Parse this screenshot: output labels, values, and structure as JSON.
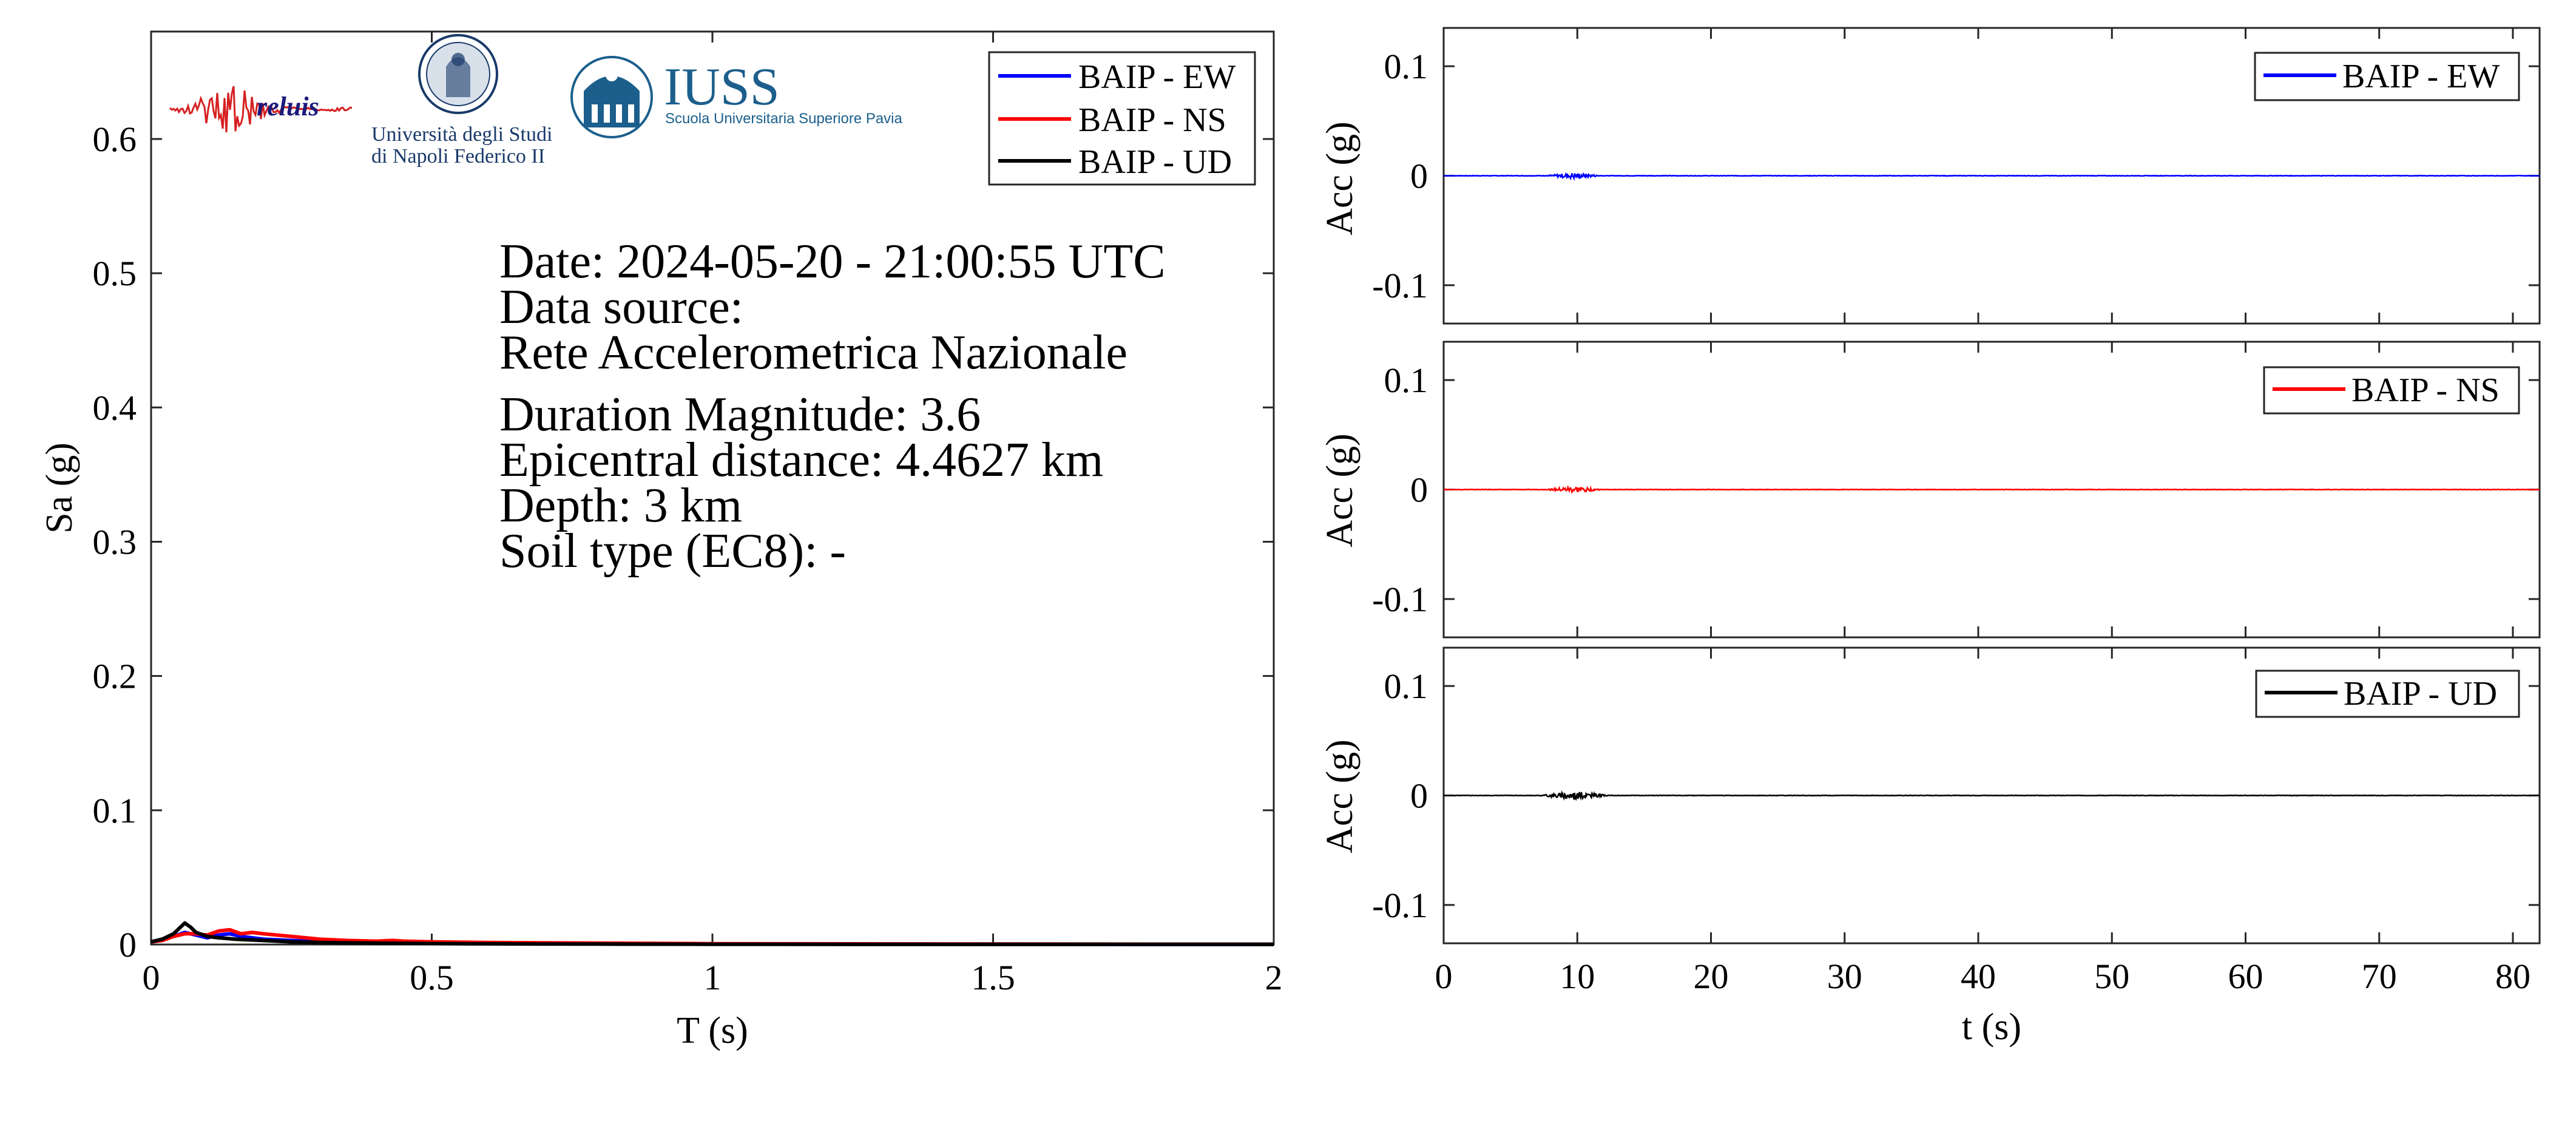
{
  "logos": {
    "reluis": "reluis",
    "napoli_line1": "Università degli Studi",
    "napoli_line2": "di Napoli Federico II",
    "iuss_title": "IUSS",
    "iuss_subtitle": "Scuola Universitaria Superiore Pavia"
  },
  "info": {
    "date": "Date: 2024-05-20 - 21:00:55 UTC",
    "source_label": "Data source:",
    "source": "Rete Accelerometrica Nazionale",
    "magnitude": "Duration Magnitude: 3.6",
    "distance": "Epicentral distance: 4.4627 km",
    "depth": "Depth: 3 km",
    "soil": "Soil type (EC8): -"
  },
  "colors": {
    "ew": "#0000ff",
    "ns": "#ff0000",
    "ud": "#000000"
  },
  "chart_data": [
    {
      "type": "line",
      "xlabel": "T (s)",
      "ylabel": "Sa (g)",
      "xlim": [
        0,
        2
      ],
      "ylim": [
        0,
        0.68
      ],
      "xticks": [
        0,
        0.5,
        1,
        1.5,
        2
      ],
      "xtick_labels": [
        "0",
        "0.5",
        "1",
        "1.5",
        "2"
      ],
      "yticks": [
        0,
        0.1,
        0.2,
        0.3,
        0.4,
        0.5,
        0.6
      ],
      "ytick_labels": [
        "0",
        "0.1",
        "0.2",
        "0.3",
        "0.4",
        "0.5",
        "0.6"
      ],
      "legend_position": "top-right",
      "series": [
        {
          "name": "BAIP - EW",
          "color": "#0000ff",
          "x": [
            0,
            0.02,
            0.04,
            0.06,
            0.08,
            0.1,
            0.12,
            0.14,
            0.16,
            0.2,
            0.25,
            0.3,
            0.35,
            0.4,
            0.45,
            0.5,
            0.6,
            0.8,
            1.0,
            1.5,
            2.0
          ],
          "y": [
            0.002,
            0.004,
            0.006,
            0.009,
            0.007,
            0.005,
            0.007,
            0.008,
            0.006,
            0.004,
            0.003,
            0.002,
            0.0015,
            0.0015,
            0.0012,
            0.001,
            0.0008,
            0.0005,
            0.0003,
            0.0002,
            0.0001
          ]
        },
        {
          "name": "BAIP - NS",
          "color": "#ff0000",
          "x": [
            0,
            0.02,
            0.04,
            0.06,
            0.08,
            0.1,
            0.12,
            0.14,
            0.16,
            0.18,
            0.2,
            0.25,
            0.3,
            0.35,
            0.4,
            0.43,
            0.45,
            0.5,
            0.6,
            0.7,
            0.8,
            1.0,
            1.5,
            2.0
          ],
          "y": [
            0.002,
            0.003,
            0.006,
            0.008,
            0.008,
            0.007,
            0.01,
            0.011,
            0.008,
            0.009,
            0.008,
            0.006,
            0.004,
            0.003,
            0.0025,
            0.003,
            0.0025,
            0.002,
            0.0015,
            0.0012,
            0.001,
            0.0006,
            0.0003,
            0.0002
          ]
        },
        {
          "name": "BAIP - UD",
          "color": "#000000",
          "x": [
            0,
            0.02,
            0.04,
            0.05,
            0.06,
            0.07,
            0.08,
            0.1,
            0.12,
            0.15,
            0.2,
            0.25,
            0.3,
            0.4,
            0.5,
            0.6,
            0.8,
            1.0,
            1.5,
            2.0
          ],
          "y": [
            0.002,
            0.004,
            0.008,
            0.012,
            0.016,
            0.013,
            0.009,
            0.006,
            0.005,
            0.004,
            0.003,
            0.002,
            0.0015,
            0.001,
            0.0007,
            0.0005,
            0.0003,
            0.0002,
            0.0001,
            0.0001
          ]
        }
      ]
    },
    {
      "type": "line",
      "xlabel": "",
      "ylabel": "Acc (g)",
      "xlim": [
        0,
        82
      ],
      "ylim": [
        -0.135,
        0.135
      ],
      "yticks": [
        0.1,
        0,
        -0.1
      ],
      "ytick_labels": [
        "0.1",
        "0",
        "-0.1"
      ],
      "legend_position": "top-right",
      "series": [
        {
          "name": "BAIP - EW",
          "color": "#0000ff",
          "burst_window_s": [
            7.5,
            12
          ],
          "peak_abs_g": 0.003
        }
      ]
    },
    {
      "type": "line",
      "xlabel": "",
      "ylabel": "Acc (g)",
      "xlim": [
        0,
        82
      ],
      "ylim": [
        -0.135,
        0.135
      ],
      "yticks": [
        0.1,
        0,
        -0.1
      ],
      "ytick_labels": [
        "0.1",
        "0",
        "-0.1"
      ],
      "legend_position": "top-right",
      "series": [
        {
          "name": "BAIP - NS",
          "color": "#ff0000",
          "burst_window_s": [
            7.5,
            12
          ],
          "peak_abs_g": 0.003
        }
      ]
    },
    {
      "type": "line",
      "xlabel": "t (s)",
      "ylabel": "Acc (g)",
      "xlim": [
        0,
        82
      ],
      "ylim": [
        -0.135,
        0.135
      ],
      "xticks": [
        0,
        10,
        20,
        30,
        40,
        50,
        60,
        70,
        80
      ],
      "xtick_labels": [
        "0",
        "10",
        "20",
        "30",
        "40",
        "50",
        "60",
        "70",
        "80"
      ],
      "yticks": [
        0.1,
        0,
        -0.1
      ],
      "ytick_labels": [
        "0.1",
        "0",
        "-0.1"
      ],
      "legend_position": "top-right",
      "series": [
        {
          "name": "BAIP - UD",
          "color": "#000000",
          "burst_window_s": [
            7,
            12.5
          ],
          "peak_abs_g": 0.004
        }
      ]
    }
  ]
}
